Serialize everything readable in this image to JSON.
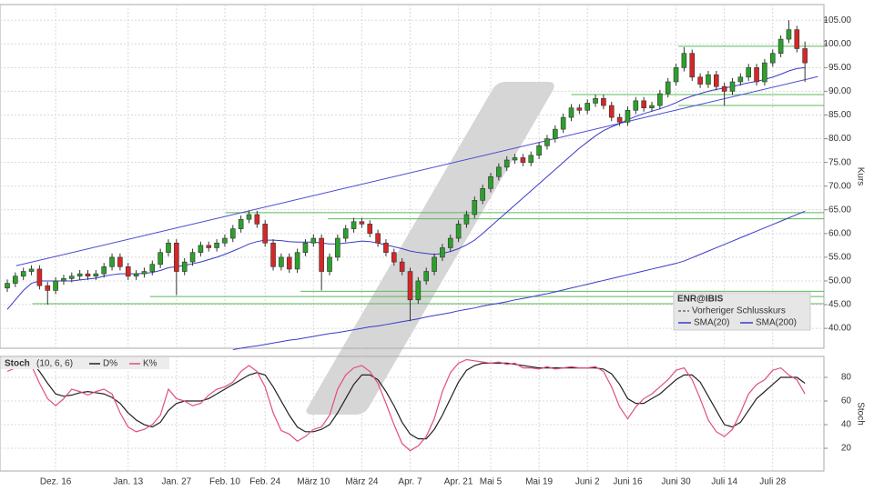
{
  "chart_data": [
    {
      "type": "candlestick",
      "categories": [
        null,
        null,
        null,
        null,
        null,
        null,
        "Dez. 16",
        null,
        null,
        null,
        null,
        null,
        null,
        null,
        null,
        "Jan. 13",
        null,
        null,
        null,
        null,
        null,
        "Jan. 27",
        null,
        null,
        null,
        null,
        null,
        "Feb. 10",
        null,
        null,
        null,
        null,
        "Feb. 24",
        null,
        null,
        null,
        null,
        null,
        "März 10",
        null,
        null,
        null,
        null,
        null,
        "März 24",
        null,
        null,
        null,
        null,
        null,
        "Apr. 7",
        null,
        null,
        null,
        null,
        null,
        "Apr. 21",
        null,
        null,
        null,
        "Mai 5",
        null,
        null,
        null,
        null,
        null,
        "Mai 19",
        null,
        null,
        null,
        null,
        null,
        "Juni 2",
        null,
        null,
        null,
        null,
        "Juni 16",
        null,
        null,
        null,
        null,
        null,
        "Juni 30",
        null,
        null,
        null,
        null,
        null,
        "Juli 14",
        null,
        null,
        null,
        null,
        null,
        "Juli 28",
        null,
        null,
        null,
        null
      ],
      "open": [
        48.5,
        49.5,
        51,
        52,
        52.5,
        49,
        48,
        50,
        50.5,
        51,
        51.5,
        51,
        51.5,
        53,
        55,
        53,
        51,
        51.5,
        52,
        53.5,
        56,
        58,
        52,
        54,
        56,
        57.5,
        57,
        58,
        59,
        61,
        63,
        64,
        62,
        58,
        53,
        55,
        52.5,
        56,
        58,
        59,
        52,
        55,
        59,
        61,
        62.5,
        62,
        60,
        58,
        56,
        54,
        52,
        46,
        50,
        52,
        55,
        57,
        59,
        62,
        64,
        67,
        69.5,
        72,
        74,
        75.5,
        76,
        75,
        76.5,
        78.5,
        80,
        82,
        84.5,
        86.5,
        86,
        87.5,
        88.5,
        87,
        84.5,
        83.5,
        86,
        88,
        86.5,
        87,
        89.5,
        92,
        95,
        98,
        93,
        91.5,
        93.5,
        91,
        90,
        92,
        93,
        95,
        92,
        96,
        98,
        101,
        103,
        99
      ],
      "high": [
        50.3,
        51.8,
        52.8,
        53.3,
        53.3,
        49.8,
        50.8,
        51.3,
        51.8,
        52.3,
        52.3,
        52.3,
        53.8,
        55.8,
        55.8,
        53.8,
        52.3,
        52.8,
        54.3,
        56.8,
        58.8,
        58.8,
        54.8,
        56.8,
        58.3,
        58.3,
        58.8,
        59.8,
        61.8,
        63.8,
        64.8,
        64.8,
        62.8,
        58.8,
        55.8,
        55.8,
        56.8,
        58.8,
        59.8,
        59.8,
        55.8,
        59.8,
        61.8,
        63.3,
        63.3,
        62.8,
        60.8,
        58.8,
        56.8,
        54.8,
        52.8,
        50.8,
        52.8,
        55.8,
        57.8,
        59.8,
        62.8,
        64.8,
        67.8,
        70.3,
        72.8,
        74.8,
        76.3,
        76.8,
        76.8,
        77.3,
        79.3,
        80.8,
        82.8,
        85.3,
        87.3,
        87.3,
        88.3,
        89.3,
        89.3,
        87.8,
        85.3,
        86.8,
        88.8,
        88.8,
        87.8,
        90.3,
        92.8,
        95.8,
        99.3,
        98.8,
        93.8,
        94.3,
        94.3,
        91.8,
        92.8,
        93.8,
        95.8,
        95.8,
        96.8,
        98.8,
        101.8,
        105,
        103.8,
        100.5
      ],
      "low": [
        47.7,
        48.7,
        50.2,
        51.2,
        48.2,
        45,
        47.2,
        49.2,
        49.7,
        50.2,
        50.2,
        50.2,
        50.7,
        52.2,
        52.2,
        50.2,
        50.2,
        50.7,
        51.2,
        52.7,
        55.2,
        47,
        51.2,
        53.2,
        55.2,
        56.2,
        56.2,
        57.2,
        58.2,
        60.2,
        62.2,
        61.2,
        57.2,
        52.2,
        52.2,
        51.7,
        51.7,
        55.2,
        57.2,
        48,
        51.2,
        54.2,
        58.2,
        60.2,
        61.2,
        59.2,
        57.2,
        55.2,
        53.2,
        51.2,
        41.5,
        45.2,
        49.2,
        51.2,
        54.2,
        56.2,
        58.2,
        61.2,
        63.2,
        66.2,
        68.7,
        71.2,
        73.2,
        74.7,
        74.2,
        74.2,
        75.7,
        77.7,
        79.2,
        81.2,
        83.7,
        85.2,
        85.2,
        86.7,
        86.2,
        83.7,
        82.7,
        82.7,
        85.2,
        85.7,
        85.7,
        86.2,
        88.7,
        91.2,
        94.2,
        92.2,
        90.7,
        90.7,
        90.2,
        87,
        89.2,
        91.2,
        92.2,
        91.2,
        91.2,
        95.2,
        97.2,
        100.2,
        98.2,
        92
      ],
      "close": [
        49.5,
        51,
        52,
        52.5,
        49,
        48,
        50,
        50.5,
        51,
        51.5,
        51,
        51.5,
        53,
        55,
        53,
        51,
        51.5,
        52,
        53.5,
        56,
        58,
        52,
        54,
        56,
        57.5,
        57,
        58,
        59,
        61,
        63,
        64,
        62,
        58,
        53,
        55,
        52.5,
        56,
        58,
        59,
        52,
        55,
        59,
        61,
        62.5,
        62,
        60,
        58,
        56,
        54,
        52,
        46,
        50,
        52,
        55,
        57,
        59,
        62,
        64,
        67,
        69.5,
        72,
        74,
        75.5,
        76,
        75,
        76.5,
        78.5,
        80,
        82,
        84.5,
        86.5,
        86,
        87.5,
        88.5,
        87,
        84.5,
        83.5,
        86,
        88,
        86.5,
        87,
        89.5,
        92,
        95,
        98,
        93,
        91.5,
        93.5,
        91,
        90,
        92,
        93,
        95,
        92,
        96,
        98,
        101,
        103,
        99,
        96
      ],
      "up_color": "#2ca02c",
      "down_color": "#d62728",
      "ylim": [
        35.8,
        108.3
      ],
      "yticks": [
        {
          "value": 40,
          "label": "40.00"
        },
        {
          "value": 45,
          "label": "45.00"
        },
        {
          "value": 50,
          "label": "50.00"
        },
        {
          "value": 55,
          "label": "55.00"
        },
        {
          "value": 60,
          "label": "60.00"
        },
        {
          "value": 65,
          "label": "65.00"
        },
        {
          "value": 70,
          "label": "70.00"
        },
        {
          "value": 75,
          "label": "75.00"
        },
        {
          "value": 80,
          "label": "80.00"
        },
        {
          "value": 85,
          "label": "85.00"
        },
        {
          "value": 90,
          "label": "90.00"
        },
        {
          "value": 95,
          "label": "95.00"
        },
        {
          "value": 100,
          "label": "100.00"
        },
        {
          "value": 105,
          "label": "105.00"
        }
      ],
      "y_label": "Kurs",
      "grid": true,
      "legend": "bottom-right",
      "legend_title": "ENR@IBIS",
      "previous_close_label": "Vorheriger Schlusskurs",
      "series": [
        {
          "name": "SMA(20)",
          "color": "#3a3ac8",
          "values": [
            44,
            46,
            48,
            49.5,
            50,
            50,
            50,
            50,
            50,
            50.2,
            50.4,
            50.6,
            51,
            51.3,
            51.5,
            51.5,
            51.5,
            51.6,
            51.8,
            52.2,
            52.8,
            53,
            53.3,
            53.6,
            54,
            54.5,
            55,
            55.6,
            56.3,
            57,
            57.8,
            58.3,
            58.6,
            58.6,
            58.5,
            58.3,
            58.2,
            58.2,
            58.2,
            58,
            57.8,
            57.8,
            58,
            58.2,
            58.4,
            58.3,
            58,
            57.6,
            57.2,
            56.8,
            56.3,
            56,
            55.8,
            55.6,
            55.8,
            56.2,
            56.8,
            57.6,
            58.6,
            60,
            61.5,
            63,
            64.5,
            66,
            67.5,
            69,
            70.5,
            72,
            73.5,
            75,
            76.5,
            78,
            79.3,
            80.6,
            81.7,
            82.5,
            83.2,
            84,
            84.7,
            85.3,
            85.8,
            86.3,
            86.9,
            87.6,
            88.4,
            89,
            89.5,
            90,
            90.4,
            90.7,
            91,
            91.4,
            91.8,
            92.1,
            92.5,
            93,
            93.6,
            94.3,
            94.8,
            95
          ]
        },
        {
          "name": "SMA(200)",
          "color": "#3a3ac8",
          "values": [
            null,
            null,
            null,
            null,
            null,
            null,
            null,
            null,
            null,
            null,
            null,
            null,
            null,
            null,
            null,
            null,
            null,
            null,
            null,
            null,
            null,
            null,
            null,
            null,
            null,
            null,
            null,
            null,
            35.5,
            35.8,
            36.1,
            36.3,
            36.6,
            36.9,
            37.2,
            37.5,
            37.7,
            38.0,
            38.3,
            38.6,
            38.9,
            39.1,
            39.4,
            39.7,
            40.0,
            40.3,
            40.5,
            40.8,
            41.1,
            41.4,
            41.7,
            42.0,
            42.4,
            42.7,
            43.0,
            43.3,
            43.7,
            44.0,
            44.3,
            44.7,
            45.0,
            45.3,
            45.6,
            46.0,
            46.3,
            46.6,
            47.0,
            47.3,
            47.7,
            48.1,
            48.5,
            48.9,
            49.3,
            49.7,
            50.1,
            50.5,
            50.9,
            51.3,
            51.7,
            52.1,
            52.5,
            52.9,
            53.3,
            53.7,
            54.2,
            54.9,
            55.6,
            56.3,
            57.0,
            57.7,
            58.4,
            59.1,
            59.8,
            60.5,
            61.2,
            61.9,
            62.6,
            63.3,
            64.0,
            64.7
          ]
        }
      ],
      "trendlines": [
        {
          "x": [
            1.1,
            100.6
          ],
          "y": [
            53.2,
            93.1
          ],
          "color": "#4a4ad0"
        }
      ],
      "hlines": [
        {
          "value": 99.5,
          "from": 83.3
        },
        {
          "value": 89.3,
          "from": 70
        },
        {
          "value": 87,
          "from": 83.3
        },
        {
          "value": 64.4,
          "from": 27.1
        },
        {
          "value": 63.1,
          "from": 39.8
        },
        {
          "value": 47.8,
          "from": 36.4
        },
        {
          "value": 46.7,
          "from": 17.7
        },
        {
          "value": 45.2,
          "from": 3.1
        }
      ],
      "hline_color": "#5cb85c"
    },
    {
      "type": "line",
      "title": "Stoch",
      "subtitle": "(10, 6, 6)",
      "y_label": "Stoch",
      "grid": true,
      "ylim": [
        0.8,
        97.7
      ],
      "yticks": [
        20,
        40,
        60,
        80
      ],
      "series": [
        {
          "name": "D%",
          "color": "#222222",
          "values": [
            88,
            90,
            92,
            93,
            85,
            75,
            66,
            64,
            65,
            67,
            68,
            67,
            66,
            63,
            58,
            50,
            44,
            40,
            38,
            42,
            52,
            58,
            60,
            60,
            60,
            62,
            66,
            70,
            74,
            78,
            82,
            84,
            82,
            72,
            60,
            48,
            38,
            34,
            34,
            36,
            40,
            50,
            62,
            74,
            82,
            82,
            78,
            68,
            56,
            42,
            32,
            28,
            28,
            36,
            48,
            62,
            76,
            86,
            90,
            92,
            92,
            92,
            92,
            91,
            90,
            89,
            88,
            88,
            88,
            88,
            88,
            88,
            88,
            88,
            87,
            83,
            74,
            62,
            58,
            58,
            62,
            66,
            72,
            78,
            82,
            82,
            76,
            64,
            52,
            40,
            38,
            42,
            52,
            62,
            68,
            74,
            80,
            80,
            80,
            75
          ]
        },
        {
          "name": "K%",
          "color": "#e0507a",
          "values": [
            85,
            88,
            90,
            90,
            75,
            62,
            56,
            62,
            70,
            68,
            65,
            68,
            70,
            66,
            50,
            38,
            34,
            36,
            40,
            48,
            70,
            62,
            60,
            56,
            58,
            65,
            70,
            72,
            76,
            85,
            90,
            85,
            72,
            50,
            35,
            32,
            26,
            30,
            36,
            38,
            48,
            70,
            82,
            88,
            90,
            85,
            75,
            58,
            40,
            24,
            18,
            22,
            30,
            45,
            68,
            84,
            92,
            95,
            94,
            93,
            92,
            93,
            91,
            92,
            88,
            88,
            87,
            89,
            87,
            88,
            89,
            88,
            88,
            89,
            85,
            72,
            55,
            45,
            55,
            62,
            66,
            72,
            78,
            86,
            88,
            78,
            62,
            44,
            34,
            30,
            36,
            50,
            66,
            74,
            78,
            86,
            88,
            82,
            78,
            66
          ]
        }
      ]
    }
  ]
}
